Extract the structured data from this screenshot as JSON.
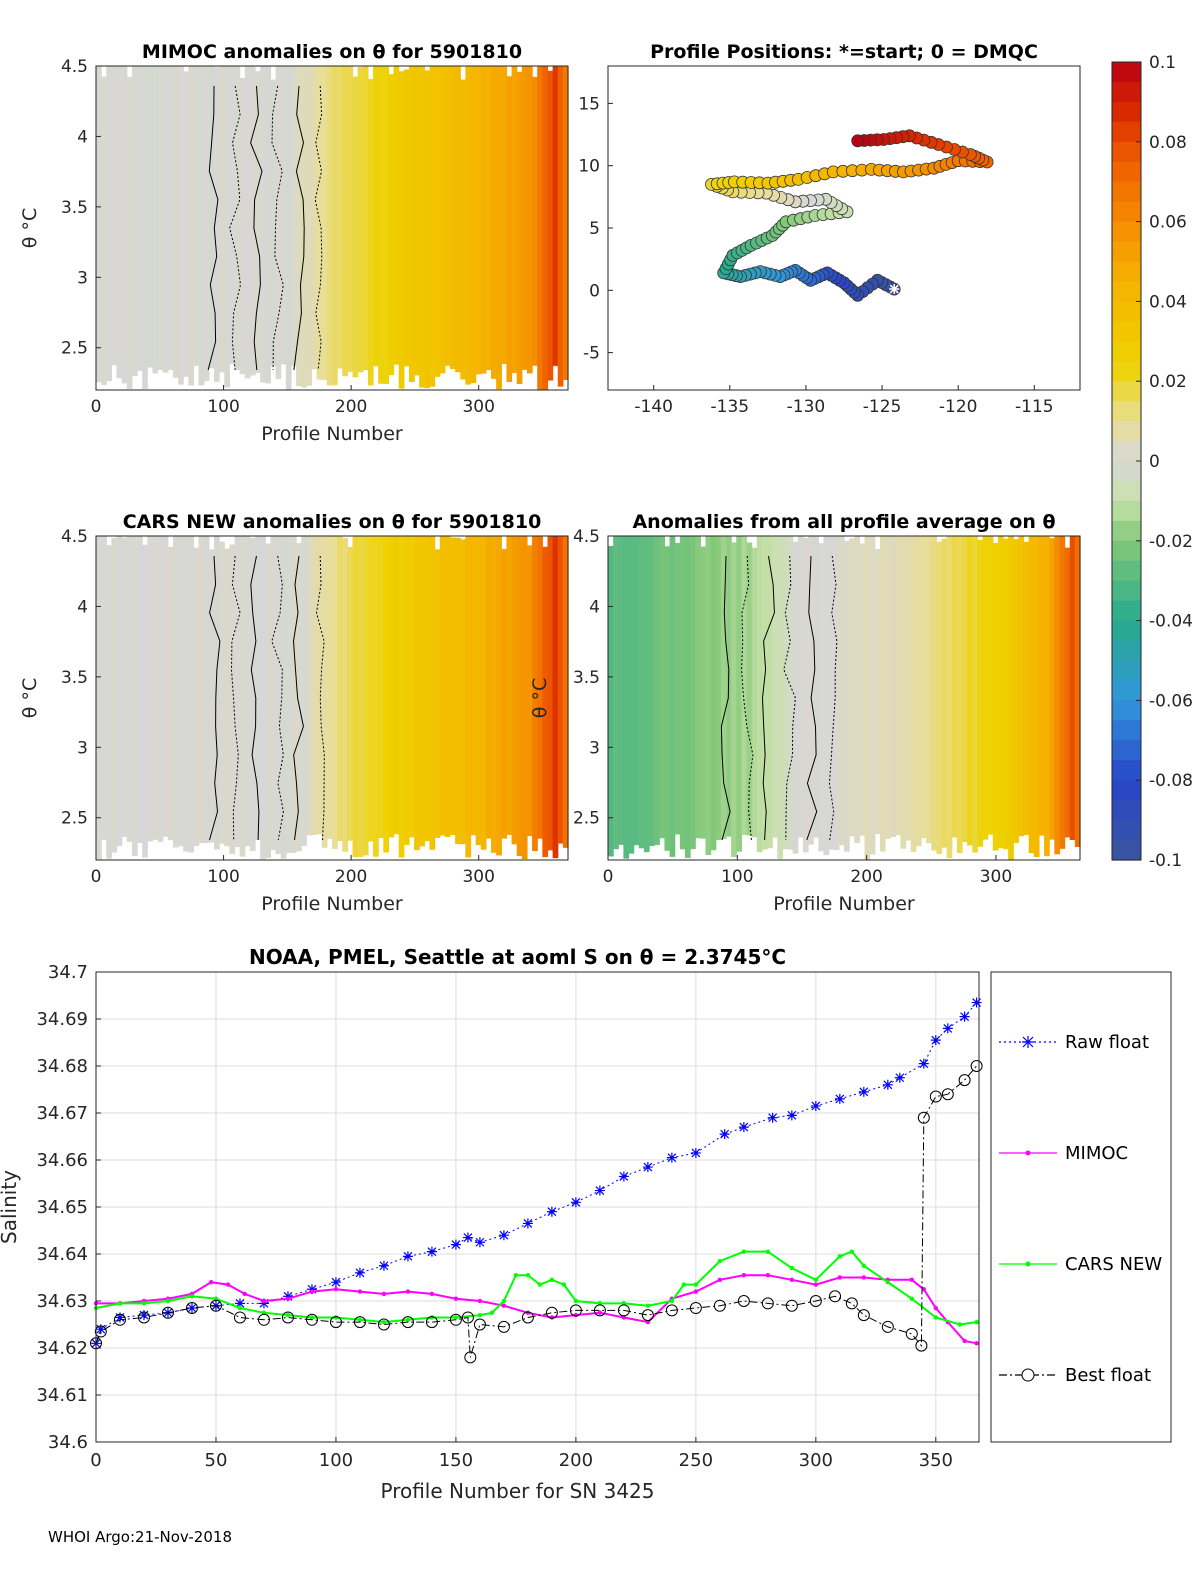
{
  "figure": {
    "footer": "WHOI Argo:21-Nov-2018",
    "colorbar": {
      "ticks": [
        "0.1",
        "0.08",
        "0.06",
        "0.04",
        "0.02",
        "0",
        "-0.02",
        "-0.04",
        "-0.06",
        "-0.08",
        "-0.1"
      ],
      "range": [
        -0.1,
        0.1
      ]
    }
  },
  "chart_data": [
    {
      "type": "heatmap",
      "title": "MIMOC anomalies on θ  for 5901810",
      "xlabel": "Profile Number",
      "ylabel": "θ °C",
      "xlim": [
        0,
        370
      ],
      "ylim": [
        2.2,
        4.5
      ],
      "xticks": [
        "0",
        "100",
        "200",
        "300"
      ],
      "yticks": [
        "4.5",
        "4",
        "3.5",
        "3",
        "2.5"
      ],
      "anomaly_vs_profile": [
        [
          0,
          0.0
        ],
        [
          150,
          0.0
        ],
        [
          200,
          0.018
        ],
        [
          280,
          0.038
        ],
        [
          340,
          0.055
        ],
        [
          360,
          0.085
        ],
        [
          368,
          0.065
        ]
      ]
    },
    {
      "type": "scatter",
      "title": "Profile Positions: *=start; 0 = DMQC",
      "xlabel": "",
      "ylabel": "",
      "xlim": [
        -143,
        -112
      ],
      "ylim": [
        -8,
        18
      ],
      "xticks": [
        "-140",
        "-135",
        "-130",
        "-125",
        "-120",
        "-115"
      ],
      "yticks": [
        "15",
        "10",
        "5",
        "0",
        "-5"
      ],
      "start": {
        "lon": -124.2,
        "lat": 0.1
      },
      "track": [
        {
          "lon": -124.2,
          "lat": 0.1
        },
        {
          "lon": -125.3,
          "lat": 0.8
        },
        {
          "lon": -126.6,
          "lat": -0.4
        },
        {
          "lon": -127.5,
          "lat": 0.6
        },
        {
          "lon": -128.6,
          "lat": 1.4
        },
        {
          "lon": -129.7,
          "lat": 0.8
        },
        {
          "lon": -130.7,
          "lat": 1.6
        },
        {
          "lon": -131.7,
          "lat": 1.1
        },
        {
          "lon": -133.0,
          "lat": 1.5
        },
        {
          "lon": -134.3,
          "lat": 1.1
        },
        {
          "lon": -135.4,
          "lat": 1.4
        },
        {
          "lon": -134.8,
          "lat": 2.8
        },
        {
          "lon": -133.6,
          "lat": 3.6
        },
        {
          "lon": -132.2,
          "lat": 4.4
        },
        {
          "lon": -131.3,
          "lat": 5.5
        },
        {
          "lon": -129.4,
          "lat": 6.0
        },
        {
          "lon": -127.3,
          "lat": 6.3
        },
        {
          "lon": -128.7,
          "lat": 7.3
        },
        {
          "lon": -130.7,
          "lat": 7.1
        },
        {
          "lon": -132.6,
          "lat": 7.8
        },
        {
          "lon": -134.8,
          "lat": 7.9
        },
        {
          "lon": -136.2,
          "lat": 8.5
        },
        {
          "lon": -134.7,
          "lat": 8.7
        },
        {
          "lon": -132.5,
          "lat": 8.6
        },
        {
          "lon": -130.5,
          "lat": 8.9
        },
        {
          "lon": -128.2,
          "lat": 9.5
        },
        {
          "lon": -125.7,
          "lat": 9.7
        },
        {
          "lon": -123.6,
          "lat": 9.5
        },
        {
          "lon": -121.6,
          "lat": 9.8
        },
        {
          "lon": -120.0,
          "lat": 10.4
        },
        {
          "lon": -118.1,
          "lat": 10.3
        },
        {
          "lon": -119.2,
          "lat": 10.9
        },
        {
          "lon": -121.3,
          "lat": 11.7
        },
        {
          "lon": -123.2,
          "lat": 12.4
        },
        {
          "lon": -124.9,
          "lat": 12.1
        },
        {
          "lon": -126.6,
          "lat": 12.0
        }
      ]
    },
    {
      "type": "heatmap",
      "title": "CARS NEW anomalies on θ for 5901810",
      "xlabel": "Profile Number",
      "ylabel": "θ °C",
      "xlim": [
        0,
        370
      ],
      "ylim": [
        2.2,
        4.5
      ],
      "xticks": [
        "0",
        "100",
        "200",
        "300"
      ],
      "yticks": [
        "4.5",
        "4",
        "3.5",
        "3",
        "2.5"
      ],
      "anomaly_vs_profile": [
        [
          0,
          0.0
        ],
        [
          160,
          0.0
        ],
        [
          210,
          0.02
        ],
        [
          290,
          0.04
        ],
        [
          340,
          0.058
        ],
        [
          360,
          0.085
        ],
        [
          368,
          0.07
        ]
      ]
    },
    {
      "type": "heatmap",
      "title": "Anomalies from all profile average on θ",
      "xlabel": "Profile Number",
      "ylabel": "θ °C",
      "xlim": [
        0,
        365
      ],
      "ylim": [
        2.2,
        4.5
      ],
      "xticks": [
        "0",
        "100",
        "200",
        "300"
      ],
      "yticks": [
        "4.5",
        "4",
        "3.5",
        "3",
        "2.5"
      ],
      "anomaly_vs_profile": [
        [
          0,
          -0.03
        ],
        [
          110,
          -0.015
        ],
        [
          150,
          0.0
        ],
        [
          230,
          0.006
        ],
        [
          300,
          0.025
        ],
        [
          340,
          0.045
        ],
        [
          360,
          0.08
        ],
        [
          365,
          0.06
        ]
      ]
    },
    {
      "type": "line",
      "title": "NOAA, PMEL, Seattle at aoml S on θ = 2.3745°C",
      "xlabel": "Profile Number for SN 3425",
      "ylabel": "Salinity",
      "xlim": [
        0,
        368
      ],
      "ylim": [
        34.6,
        34.7
      ],
      "xticks": [
        "0",
        "50",
        "100",
        "150",
        "200",
        "250",
        "300",
        "350"
      ],
      "yticks": [
        "34.7",
        "34.69",
        "34.68",
        "34.67",
        "34.66",
        "34.65",
        "34.64",
        "34.63",
        "34.62",
        "34.61",
        "34.6"
      ],
      "series": [
        {
          "name": "Raw float",
          "color": "#0000ff",
          "points": [
            [
              0,
              34.621
            ],
            [
              2,
              34.624
            ],
            [
              10,
              34.6265
            ],
            [
              20,
              34.627
            ],
            [
              30,
              34.6275
            ],
            [
              40,
              34.6285
            ],
            [
              50,
              34.629
            ],
            [
              60,
              34.6295
            ],
            [
              70,
              34.6295
            ],
            [
              80,
              34.631
            ],
            [
              90,
              34.6325
            ],
            [
              100,
              34.634
            ],
            [
              110,
              34.636
            ],
            [
              120,
              34.6375
            ],
            [
              130,
              34.6395
            ],
            [
              140,
              34.6405
            ],
            [
              150,
              34.642
            ],
            [
              155,
              34.6435
            ],
            [
              160,
              34.6425
            ],
            [
              170,
              34.644
            ],
            [
              180,
              34.6465
            ],
            [
              190,
              34.649
            ],
            [
              200,
              34.651
            ],
            [
              210,
              34.6535
            ],
            [
              220,
              34.6565
            ],
            [
              230,
              34.6585
            ],
            [
              240,
              34.6605
            ],
            [
              250,
              34.6615
            ],
            [
              262,
              34.6655
            ],
            [
              270,
              34.667
            ],
            [
              282,
              34.669
            ],
            [
              290,
              34.6695
            ],
            [
              300,
              34.6715
            ],
            [
              310,
              34.673
            ],
            [
              320,
              34.6745
            ],
            [
              330,
              34.676
            ],
            [
              335,
              34.6775
            ],
            [
              345,
              34.6805
            ],
            [
              350,
              34.6855
            ],
            [
              355,
              34.688
            ],
            [
              362,
              34.6905
            ],
            [
              367,
              34.6935
            ]
          ]
        },
        {
          "name": "MIMOC",
          "color": "#ff00ff",
          "points": [
            [
              0,
              34.6295
            ],
            [
              10,
              34.6295
            ],
            [
              20,
              34.63
            ],
            [
              30,
              34.6305
            ],
            [
              40,
              34.6315
            ],
            [
              48,
              34.634
            ],
            [
              55,
              34.6335
            ],
            [
              62,
              34.6315
            ],
            [
              70,
              34.63
            ],
            [
              80,
              34.6305
            ],
            [
              90,
              34.632
            ],
            [
              100,
              34.6325
            ],
            [
              110,
              34.632
            ],
            [
              120,
              34.6315
            ],
            [
              130,
              34.632
            ],
            [
              140,
              34.6315
            ],
            [
              150,
              34.6305
            ],
            [
              160,
              34.63
            ],
            [
              170,
              34.629
            ],
            [
              180,
              34.6275
            ],
            [
              190,
              34.6265
            ],
            [
              200,
              34.627
            ],
            [
              210,
              34.6275
            ],
            [
              220,
              34.6265
            ],
            [
              230,
              34.6255
            ],
            [
              240,
              34.6305
            ],
            [
              250,
              34.632
            ],
            [
              260,
              34.6345
            ],
            [
              270,
              34.6355
            ],
            [
              280,
              34.6355
            ],
            [
              290,
              34.6345
            ],
            [
              300,
              34.6335
            ],
            [
              310,
              34.635
            ],
            [
              320,
              34.635
            ],
            [
              330,
              34.6345
            ],
            [
              340,
              34.6345
            ],
            [
              345,
              34.6325
            ],
            [
              350,
              34.6285
            ],
            [
              355,
              34.6255
            ],
            [
              362,
              34.6215
            ],
            [
              367,
              34.621
            ]
          ]
        },
        {
          "name": "CARS NEW",
          "color": "#00ff00",
          "points": [
            [
              0,
              34.6285
            ],
            [
              10,
              34.6295
            ],
            [
              20,
              34.6295
            ],
            [
              30,
              34.63
            ],
            [
              40,
              34.631
            ],
            [
              50,
              34.6305
            ],
            [
              60,
              34.6285
            ],
            [
              70,
              34.6275
            ],
            [
              80,
              34.627
            ],
            [
              90,
              34.6265
            ],
            [
              100,
              34.6265
            ],
            [
              110,
              34.626
            ],
            [
              120,
              34.6255
            ],
            [
              130,
              34.626
            ],
            [
              140,
              34.6265
            ],
            [
              150,
              34.6265
            ],
            [
              160,
              34.627
            ],
            [
              165,
              34.6275
            ],
            [
              170,
              34.63
            ],
            [
              175,
              34.6355
            ],
            [
              180,
              34.6355
            ],
            [
              185,
              34.6335
            ],
            [
              190,
              34.6345
            ],
            [
              195,
              34.6335
            ],
            [
              200,
              34.63
            ],
            [
              210,
              34.6295
            ],
            [
              220,
              34.6295
            ],
            [
              230,
              34.629
            ],
            [
              240,
              34.63
            ],
            [
              245,
              34.6335
            ],
            [
              250,
              34.6335
            ],
            [
              260,
              34.6385
            ],
            [
              270,
              34.6405
            ],
            [
              280,
              34.6405
            ],
            [
              290,
              34.637
            ],
            [
              300,
              34.6345
            ],
            [
              310,
              34.6395
            ],
            [
              315,
              34.6405
            ],
            [
              320,
              34.6375
            ],
            [
              330,
              34.634
            ],
            [
              340,
              34.6305
            ],
            [
              350,
              34.6265
            ],
            [
              360,
              34.625
            ],
            [
              367,
              34.6255
            ]
          ]
        },
        {
          "name": "Best float",
          "color": "#000000",
          "points": [
            [
              0,
              34.621
            ],
            [
              2,
              34.6235
            ],
            [
              10,
              34.626
            ],
            [
              20,
              34.6265
            ],
            [
              30,
              34.6275
            ],
            [
              40,
              34.6285
            ],
            [
              50,
              34.629
            ],
            [
              60,
              34.6265
            ],
            [
              70,
              34.626
            ],
            [
              80,
              34.6265
            ],
            [
              90,
              34.626
            ],
            [
              100,
              34.6255
            ],
            [
              110,
              34.6255
            ],
            [
              120,
              34.625
            ],
            [
              130,
              34.6255
            ],
            [
              140,
              34.6255
            ],
            [
              150,
              34.626
            ],
            [
              155,
              34.6265
            ],
            [
              156,
              34.618
            ],
            [
              160,
              34.625
            ],
            [
              170,
              34.6245
            ],
            [
              180,
              34.6265
            ],
            [
              190,
              34.6275
            ],
            [
              200,
              34.628
            ],
            [
              210,
              34.628
            ],
            [
              220,
              34.628
            ],
            [
              230,
              34.627
            ],
            [
              240,
              34.628
            ],
            [
              250,
              34.6285
            ],
            [
              260,
              34.629
            ],
            [
              270,
              34.63
            ],
            [
              280,
              34.6295
            ],
            [
              290,
              34.629
            ],
            [
              300,
              34.63
            ],
            [
              308,
              34.631
            ],
            [
              315,
              34.6295
            ],
            [
              320,
              34.627
            ],
            [
              330,
              34.6245
            ],
            [
              340,
              34.623
            ],
            [
              344,
              34.6205
            ],
            [
              345,
              34.669
            ],
            [
              350,
              34.6735
            ],
            [
              355,
              34.674
            ],
            [
              362,
              34.677
            ],
            [
              367,
              34.68
            ]
          ]
        }
      ]
    }
  ]
}
